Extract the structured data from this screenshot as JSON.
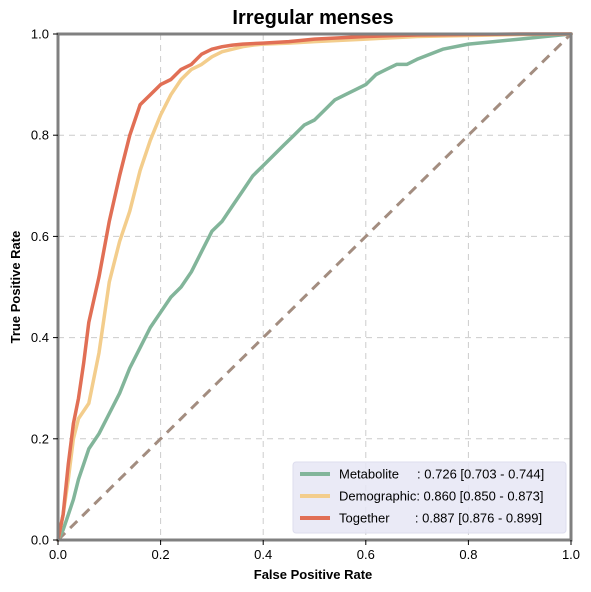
{
  "chart_data": {
    "type": "line",
    "title": "Irregular menses",
    "xlabel": "False Positive Rate",
    "ylabel": "True Positive Rate",
    "xlim": [
      0,
      1
    ],
    "ylim": [
      0,
      1
    ],
    "xticks": [
      "0.0",
      "0.2",
      "0.4",
      "0.6",
      "0.8",
      "1.0"
    ],
    "yticks": [
      "0.0",
      "0.2",
      "0.4",
      "0.6",
      "0.8",
      "1.0"
    ],
    "grid": true,
    "legend_position": "bottom-right",
    "reference_line": {
      "x": [
        0,
        1
      ],
      "y": [
        0,
        1
      ],
      "color": "#a38d80",
      "style": "dashed"
    },
    "series": [
      {
        "name": "Metabolite",
        "label": "Metabolite     : 0.726 [0.703 - 0.744]",
        "color": "#82b59a",
        "x": [
          0,
          0.01,
          0.02,
          0.03,
          0.04,
          0.05,
          0.06,
          0.08,
          0.1,
          0.12,
          0.14,
          0.16,
          0.18,
          0.2,
          0.22,
          0.24,
          0.26,
          0.28,
          0.3,
          0.32,
          0.34,
          0.36,
          0.38,
          0.4,
          0.42,
          0.44,
          0.46,
          0.48,
          0.5,
          0.52,
          0.54,
          0.56,
          0.58,
          0.6,
          0.62,
          0.64,
          0.66,
          0.68,
          0.7,
          0.75,
          0.8,
          0.85,
          0.9,
          0.95,
          1.0
        ],
        "y": [
          0,
          0.02,
          0.05,
          0.08,
          0.12,
          0.15,
          0.18,
          0.21,
          0.25,
          0.29,
          0.34,
          0.38,
          0.42,
          0.45,
          0.48,
          0.5,
          0.53,
          0.57,
          0.61,
          0.63,
          0.66,
          0.69,
          0.72,
          0.74,
          0.76,
          0.78,
          0.8,
          0.82,
          0.83,
          0.85,
          0.87,
          0.88,
          0.89,
          0.9,
          0.92,
          0.93,
          0.94,
          0.94,
          0.95,
          0.97,
          0.98,
          0.985,
          0.99,
          0.995,
          1.0
        ]
      },
      {
        "name": "Demographic",
        "label": "Demographic: 0.860 [0.850 - 0.873]",
        "color": "#f3cd8c",
        "x": [
          0,
          0.01,
          0.02,
          0.03,
          0.04,
          0.06,
          0.08,
          0.1,
          0.12,
          0.14,
          0.16,
          0.18,
          0.2,
          0.22,
          0.24,
          0.26,
          0.28,
          0.3,
          0.32,
          0.34,
          0.36,
          0.38,
          0.4,
          0.45,
          0.5,
          0.6,
          0.7,
          0.8,
          0.9,
          1.0
        ],
        "y": [
          0,
          0.05,
          0.12,
          0.2,
          0.24,
          0.27,
          0.37,
          0.51,
          0.59,
          0.65,
          0.73,
          0.79,
          0.84,
          0.88,
          0.91,
          0.93,
          0.94,
          0.955,
          0.965,
          0.97,
          0.975,
          0.978,
          0.98,
          0.982,
          0.985,
          0.99,
          0.995,
          0.997,
          0.999,
          1.0
        ]
      },
      {
        "name": "Together",
        "label": "Together       : 0.887 [0.876 - 0.899]",
        "color": "#e16f55",
        "x": [
          0,
          0.01,
          0.02,
          0.03,
          0.04,
          0.05,
          0.06,
          0.08,
          0.1,
          0.12,
          0.14,
          0.16,
          0.18,
          0.2,
          0.22,
          0.24,
          0.26,
          0.28,
          0.3,
          0.32,
          0.34,
          0.36,
          0.4,
          0.45,
          0.5,
          0.6,
          0.7,
          0.8,
          0.9,
          1.0
        ],
        "y": [
          0,
          0.05,
          0.15,
          0.23,
          0.28,
          0.35,
          0.43,
          0.52,
          0.63,
          0.72,
          0.8,
          0.86,
          0.88,
          0.9,
          0.91,
          0.93,
          0.94,
          0.96,
          0.97,
          0.975,
          0.978,
          0.98,
          0.982,
          0.985,
          0.99,
          0.995,
          0.998,
          0.999,
          1.0,
          1.0
        ]
      }
    ]
  }
}
